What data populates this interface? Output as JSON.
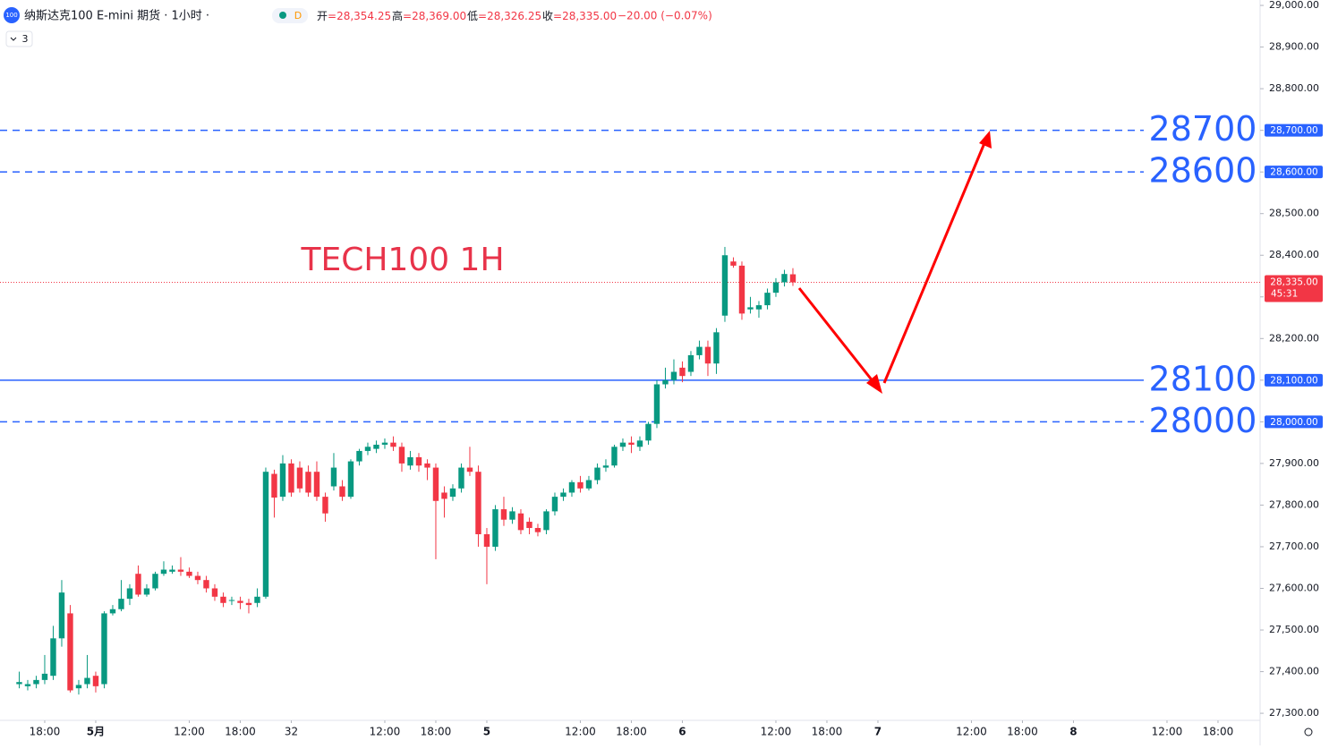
{
  "header": {
    "logo": "100",
    "symbol": "纳斯达克100 E-mini 期货 · 1小时 ·",
    "interval": "D",
    "ohlc": [
      {
        "key": "开",
        "value": "=28,354.25"
      },
      {
        "key": "高",
        "value": "=28,369.00"
      },
      {
        "key": "低",
        "value": "=28,326.25"
      },
      {
        "key": "收",
        "value": "=28,335.00"
      }
    ],
    "change": "−20.00 (−0.07%)",
    "indicators": 3
  },
  "chart_data": {
    "type": "candlestick",
    "title": "TECH100 1H",
    "up_color": "#089981",
    "down_color": "#f23645",
    "candles": [
      [
        27370,
        27400,
        27360,
        27375
      ],
      [
        27365,
        27380,
        27355,
        27370
      ],
      [
        27370,
        27390,
        27360,
        27380
      ],
      [
        27380,
        27440,
        27370,
        27395
      ],
      [
        27390,
        27510,
        27380,
        27480
      ],
      [
        27480,
        27620,
        27460,
        27590
      ],
      [
        27540,
        27560,
        27350,
        27355
      ],
      [
        27360,
        27380,
        27345,
        27368
      ],
      [
        27370,
        27440,
        27360,
        27385
      ],
      [
        27390,
        27400,
        27350,
        27365
      ],
      [
        27370,
        27545,
        27360,
        27540
      ],
      [
        27540,
        27560,
        27535,
        27550
      ],
      [
        27550,
        27620,
        27545,
        27575
      ],
      [
        27575,
        27610,
        27560,
        27600
      ],
      [
        27635,
        27655,
        27580,
        27585
      ],
      [
        27585,
        27610,
        27580,
        27600
      ],
      [
        27600,
        27640,
        27595,
        27635
      ],
      [
        27635,
        27665,
        27630,
        27645
      ],
      [
        27640,
        27655,
        27635,
        27645
      ],
      [
        27645,
        27675,
        27630,
        27640
      ],
      [
        27640,
        27650,
        27625,
        27630
      ],
      [
        27630,
        27640,
        27610,
        27620
      ],
      [
        27620,
        27630,
        27590,
        27600
      ],
      [
        27600,
        27610,
        27570,
        27580
      ],
      [
        27580,
        27590,
        27555,
        27565
      ],
      [
        27570,
        27580,
        27560,
        27572
      ],
      [
        27570,
        27580,
        27550,
        27565
      ],
      [
        27565,
        27575,
        27540,
        27560
      ],
      [
        27565,
        27600,
        27555,
        27580
      ],
      [
        27580,
        27890,
        27575,
        27880
      ],
      [
        27875,
        27885,
        27770,
        27818
      ],
      [
        27820,
        27920,
        27810,
        27900
      ],
      [
        27900,
        27910,
        27820,
        27830
      ],
      [
        27890,
        27905,
        27830,
        27840
      ],
      [
        27880,
        27895,
        27820,
        27830
      ],
      [
        27880,
        27905,
        27810,
        27820
      ],
      [
        27820,
        27830,
        27760,
        27780
      ],
      [
        27845,
        27925,
        27835,
        27890
      ],
      [
        27845,
        27860,
        27810,
        27820
      ],
      [
        27820,
        27910,
        27815,
        27905
      ],
      [
        27905,
        27935,
        27895,
        27930
      ],
      [
        27930,
        27950,
        27920,
        27940
      ],
      [
        27935,
        27955,
        27925,
        27945
      ],
      [
        27945,
        27960,
        27935,
        27950
      ],
      [
        27950,
        27965,
        27930,
        27940
      ],
      [
        27940,
        27950,
        27880,
        27900
      ],
      [
        27895,
        27930,
        27885,
        27915
      ],
      [
        27915,
        27925,
        27880,
        27895
      ],
      [
        27900,
        27910,
        27860,
        27890
      ],
      [
        27890,
        27900,
        27670,
        27810
      ],
      [
        27830,
        27845,
        27770,
        27815
      ],
      [
        27820,
        27850,
        27810,
        27840
      ],
      [
        27840,
        27900,
        27830,
        27890
      ],
      [
        27890,
        27940,
        27870,
        27880
      ],
      [
        27880,
        27895,
        27700,
        27730
      ],
      [
        27730,
        27745,
        27610,
        27700
      ],
      [
        27700,
        27800,
        27690,
        27790
      ],
      [
        27790,
        27820,
        27750,
        27765
      ],
      [
        27765,
        27795,
        27755,
        27785
      ],
      [
        27780,
        27790,
        27730,
        27740
      ],
      [
        27760,
        27770,
        27730,
        27745
      ],
      [
        27745,
        27755,
        27725,
        27735
      ],
      [
        27740,
        27790,
        27730,
        27785
      ],
      [
        27785,
        27830,
        27775,
        27820
      ],
      [
        27820,
        27840,
        27810,
        27830
      ],
      [
        27830,
        27860,
        27820,
        27855
      ],
      [
        27855,
        27870,
        27830,
        27840
      ],
      [
        27840,
        27870,
        27835,
        27860
      ],
      [
        27860,
        27900,
        27850,
        27890
      ],
      [
        27890,
        27910,
        27880,
        27895
      ],
      [
        27895,
        27945,
        27890,
        27940
      ],
      [
        27940,
        27960,
        27930,
        27950
      ],
      [
        27950,
        27965,
        27925,
        27945
      ],
      [
        27940,
        27965,
        27930,
        27955
      ],
      [
        27955,
        28000,
        27945,
        27995
      ],
      [
        27995,
        28100,
        27985,
        28090
      ],
      [
        28090,
        28130,
        28080,
        28100
      ],
      [
        28100,
        28150,
        28090,
        28120
      ],
      [
        28130,
        28145,
        28095,
        28110
      ],
      [
        28120,
        28170,
        28110,
        28160
      ],
      [
        28160,
        28195,
        28150,
        28180
      ],
      [
        28180,
        28195,
        28110,
        28140
      ],
      [
        28140,
        28225,
        28115,
        28215
      ],
      [
        28255,
        28420,
        28240,
        28400
      ],
      [
        28385,
        28395,
        28370,
        28375
      ],
      [
        28375,
        28385,
        28245,
        28260
      ],
      [
        28270,
        28300,
        28260,
        28275
      ],
      [
        28270,
        28290,
        28250,
        28280
      ],
      [
        28280,
        28320,
        28270,
        28310
      ],
      [
        28310,
        28345,
        28300,
        28335
      ],
      [
        28335,
        28365,
        28325,
        28355
      ],
      [
        28354.25,
        28369,
        28326.25,
        28335
      ]
    ],
    "xlim": [
      -2.26,
      145.95
    ],
    "xticks": [
      {
        "value": 3,
        "label": "18:00"
      },
      {
        "value": 9,
        "label": "5月"
      },
      {
        "value": 20,
        "label": "12:00"
      },
      {
        "value": 26,
        "label": "18:00"
      },
      32,
      {
        "value": 43,
        "label": "12:00"
      },
      {
        "value": 49,
        "label": "18:00"
      },
      {
        "value": 55,
        "label": "5"
      },
      {
        "value": 66,
        "label": "12:00"
      },
      {
        "value": 72,
        "label": "18:00"
      },
      {
        "value": 78,
        "label": "6"
      },
      {
        "value": 89,
        "label": "12:00"
      },
      {
        "value": 95,
        "label": "18:00"
      },
      {
        "value": 101,
        "label": "7"
      },
      {
        "value": 112,
        "label": "12:00"
      },
      {
        "value": 118,
        "label": "18:00"
      },
      {
        "value": 124,
        "label": "8"
      },
      {
        "value": 135,
        "label": "12:00"
      },
      {
        "value": 141,
        "label": "18:00"
      }
    ],
    "ylim": [
      27283,
      29013
    ],
    "yticks": [
      {
        "value": 27300,
        "label": "27,300.00"
      },
      {
        "value": 27400,
        "label": "27,400.00"
      },
      {
        "value": 27500,
        "label": "27,500.00"
      },
      {
        "value": 27600,
        "label": "27,600.00"
      },
      {
        "value": 27700,
        "label": "27,700.00"
      },
      {
        "value": 27800,
        "label": "27,800.00"
      },
      {
        "value": 27900,
        "label": "27,900.00"
      },
      {
        "value": 28000,
        "label": "28,000.00"
      },
      {
        "value": 28100,
        "label": "28,100.00"
      },
      {
        "value": 28200,
        "label": "28,200.00"
      },
      {
        "value": 28300,
        "label": "28,300.00"
      },
      {
        "value": 28400,
        "label": "28,400.00"
      },
      {
        "value": 28500,
        "label": "28,500.00"
      },
      {
        "value": 28600,
        "label": "28,600.00"
      },
      {
        "value": 28700,
        "label": "28,700.00"
      },
      {
        "value": 28800,
        "label": "28,800.00"
      },
      {
        "value": 28900,
        "label": "28,900.00"
      },
      {
        "value": 29000,
        "label": "29,000.00"
      }
    ],
    "levels": [
      {
        "value": 28700,
        "axis_label": "28,700.00",
        "style": "dashed"
      },
      {
        "value": 28600,
        "axis_label": "28,600.00",
        "style": "dashed"
      },
      {
        "value": 28100,
        "axis_label": "28,100.00",
        "style": "solid"
      },
      {
        "value": 28000,
        "axis_label": "28,000.00",
        "style": "dashed"
      }
    ],
    "level_color": "#2962ff",
    "last_price": {
      "value": 28335,
      "label": "28,335.00",
      "countdown": "45:31"
    }
  }
}
